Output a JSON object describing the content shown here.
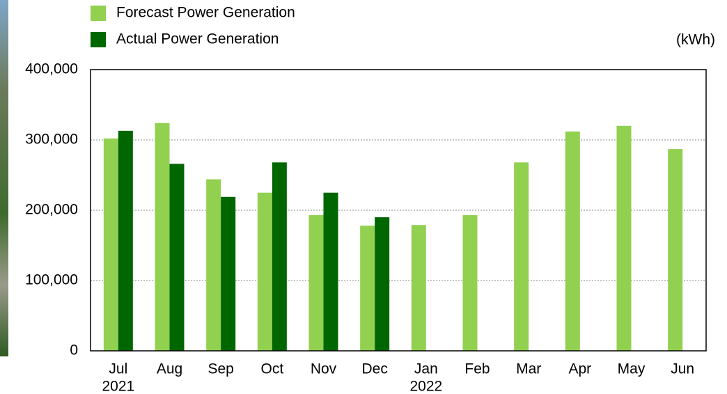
{
  "chart_data": {
    "type": "bar",
    "unit": "(kWh)",
    "categories": [
      "Jul",
      "Aug",
      "Sep",
      "Oct",
      "Nov",
      "Dec",
      "Jan",
      "Feb",
      "Mar",
      "Apr",
      "May",
      "Jun"
    ],
    "year_labels": [
      "2021",
      null,
      null,
      null,
      null,
      null,
      "2022",
      null,
      null,
      null,
      null,
      null
    ],
    "series": [
      {
        "name": "Forecast Power Generation",
        "color": "#92d050",
        "values": [
          302000,
          324000,
          244000,
          225000,
          193000,
          178000,
          179000,
          193000,
          268000,
          312000,
          320000,
          287000
        ]
      },
      {
        "name": "Actual Power Generation",
        "color": "#006600",
        "values": [
          313000,
          266000,
          219000,
          268000,
          225000,
          190000,
          null,
          null,
          null,
          null,
          null,
          null
        ]
      }
    ],
    "ylim": [
      0,
      400000
    ],
    "yticks": [
      0,
      {
        "value": 100000,
        "label": "100,000"
      },
      {
        "value": 200000,
        "label": "200,000"
      },
      {
        "value": 300000,
        "label": "300,000"
      },
      {
        "value": 400000,
        "label": "400,000"
      }
    ],
    "grid": true
  }
}
